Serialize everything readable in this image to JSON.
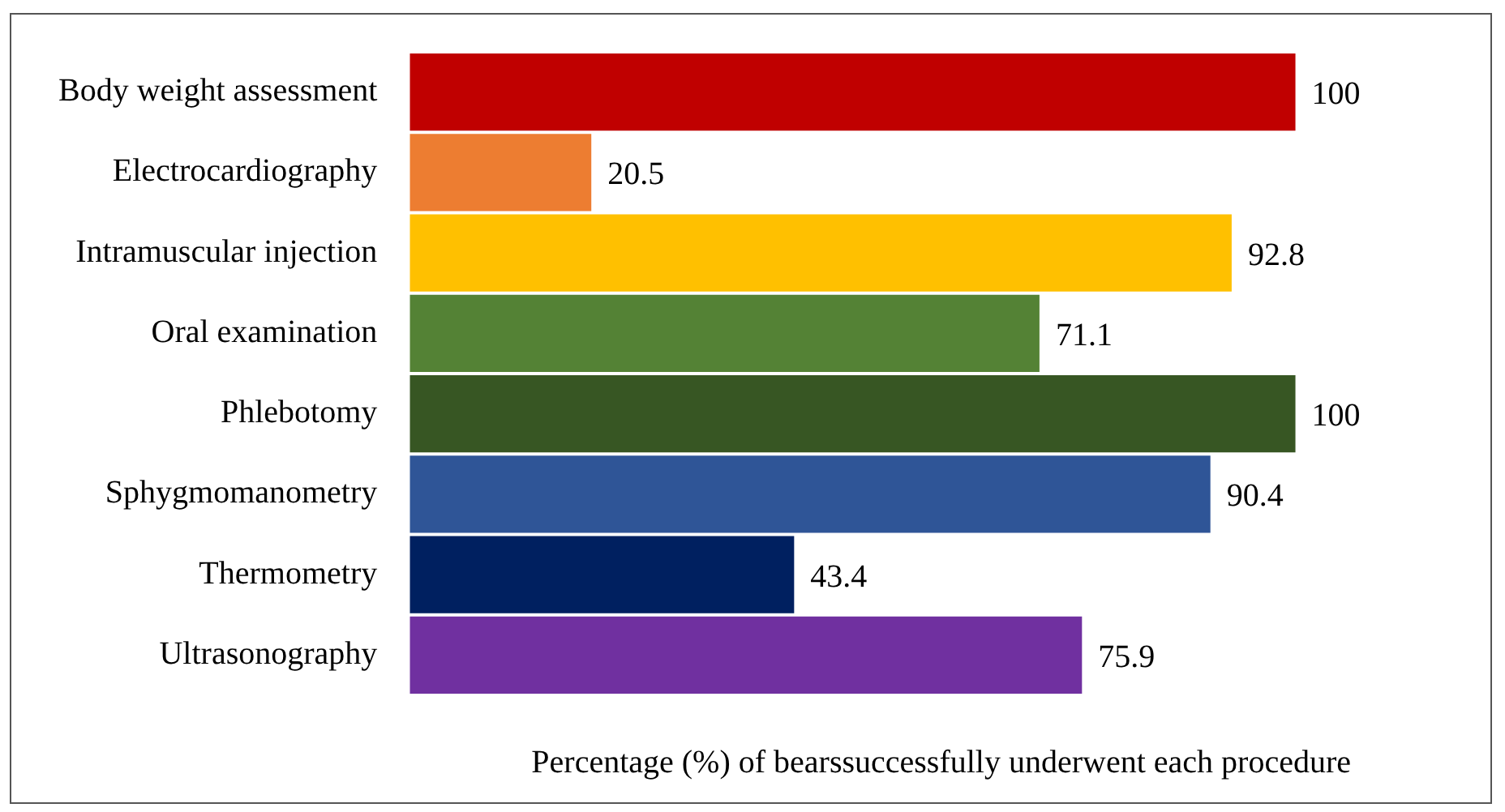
{
  "chart_data": {
    "type": "bar",
    "orientation": "horizontal",
    "xlabel": "Percentage (%) of bearssuccessfully underwent each procedure",
    "categories": [
      "Body weight assessment",
      "Electrocardiography",
      "Intramuscular injection",
      "Oral examination",
      "Phlebotomy",
      "Sphygmomanometry",
      "Thermometry",
      "Ultrasonography"
    ],
    "values": [
      100,
      20.5,
      92.8,
      71.1,
      100,
      90.4,
      43.4,
      75.9
    ],
    "colors": [
      "#c00000",
      "#ed7d31",
      "#ffc000",
      "#548235",
      "#375623",
      "#2f5597",
      "#002060",
      "#7030a0"
    ],
    "data_labels": true,
    "grid": false,
    "legend": false,
    "tick_labels": "y"
  }
}
